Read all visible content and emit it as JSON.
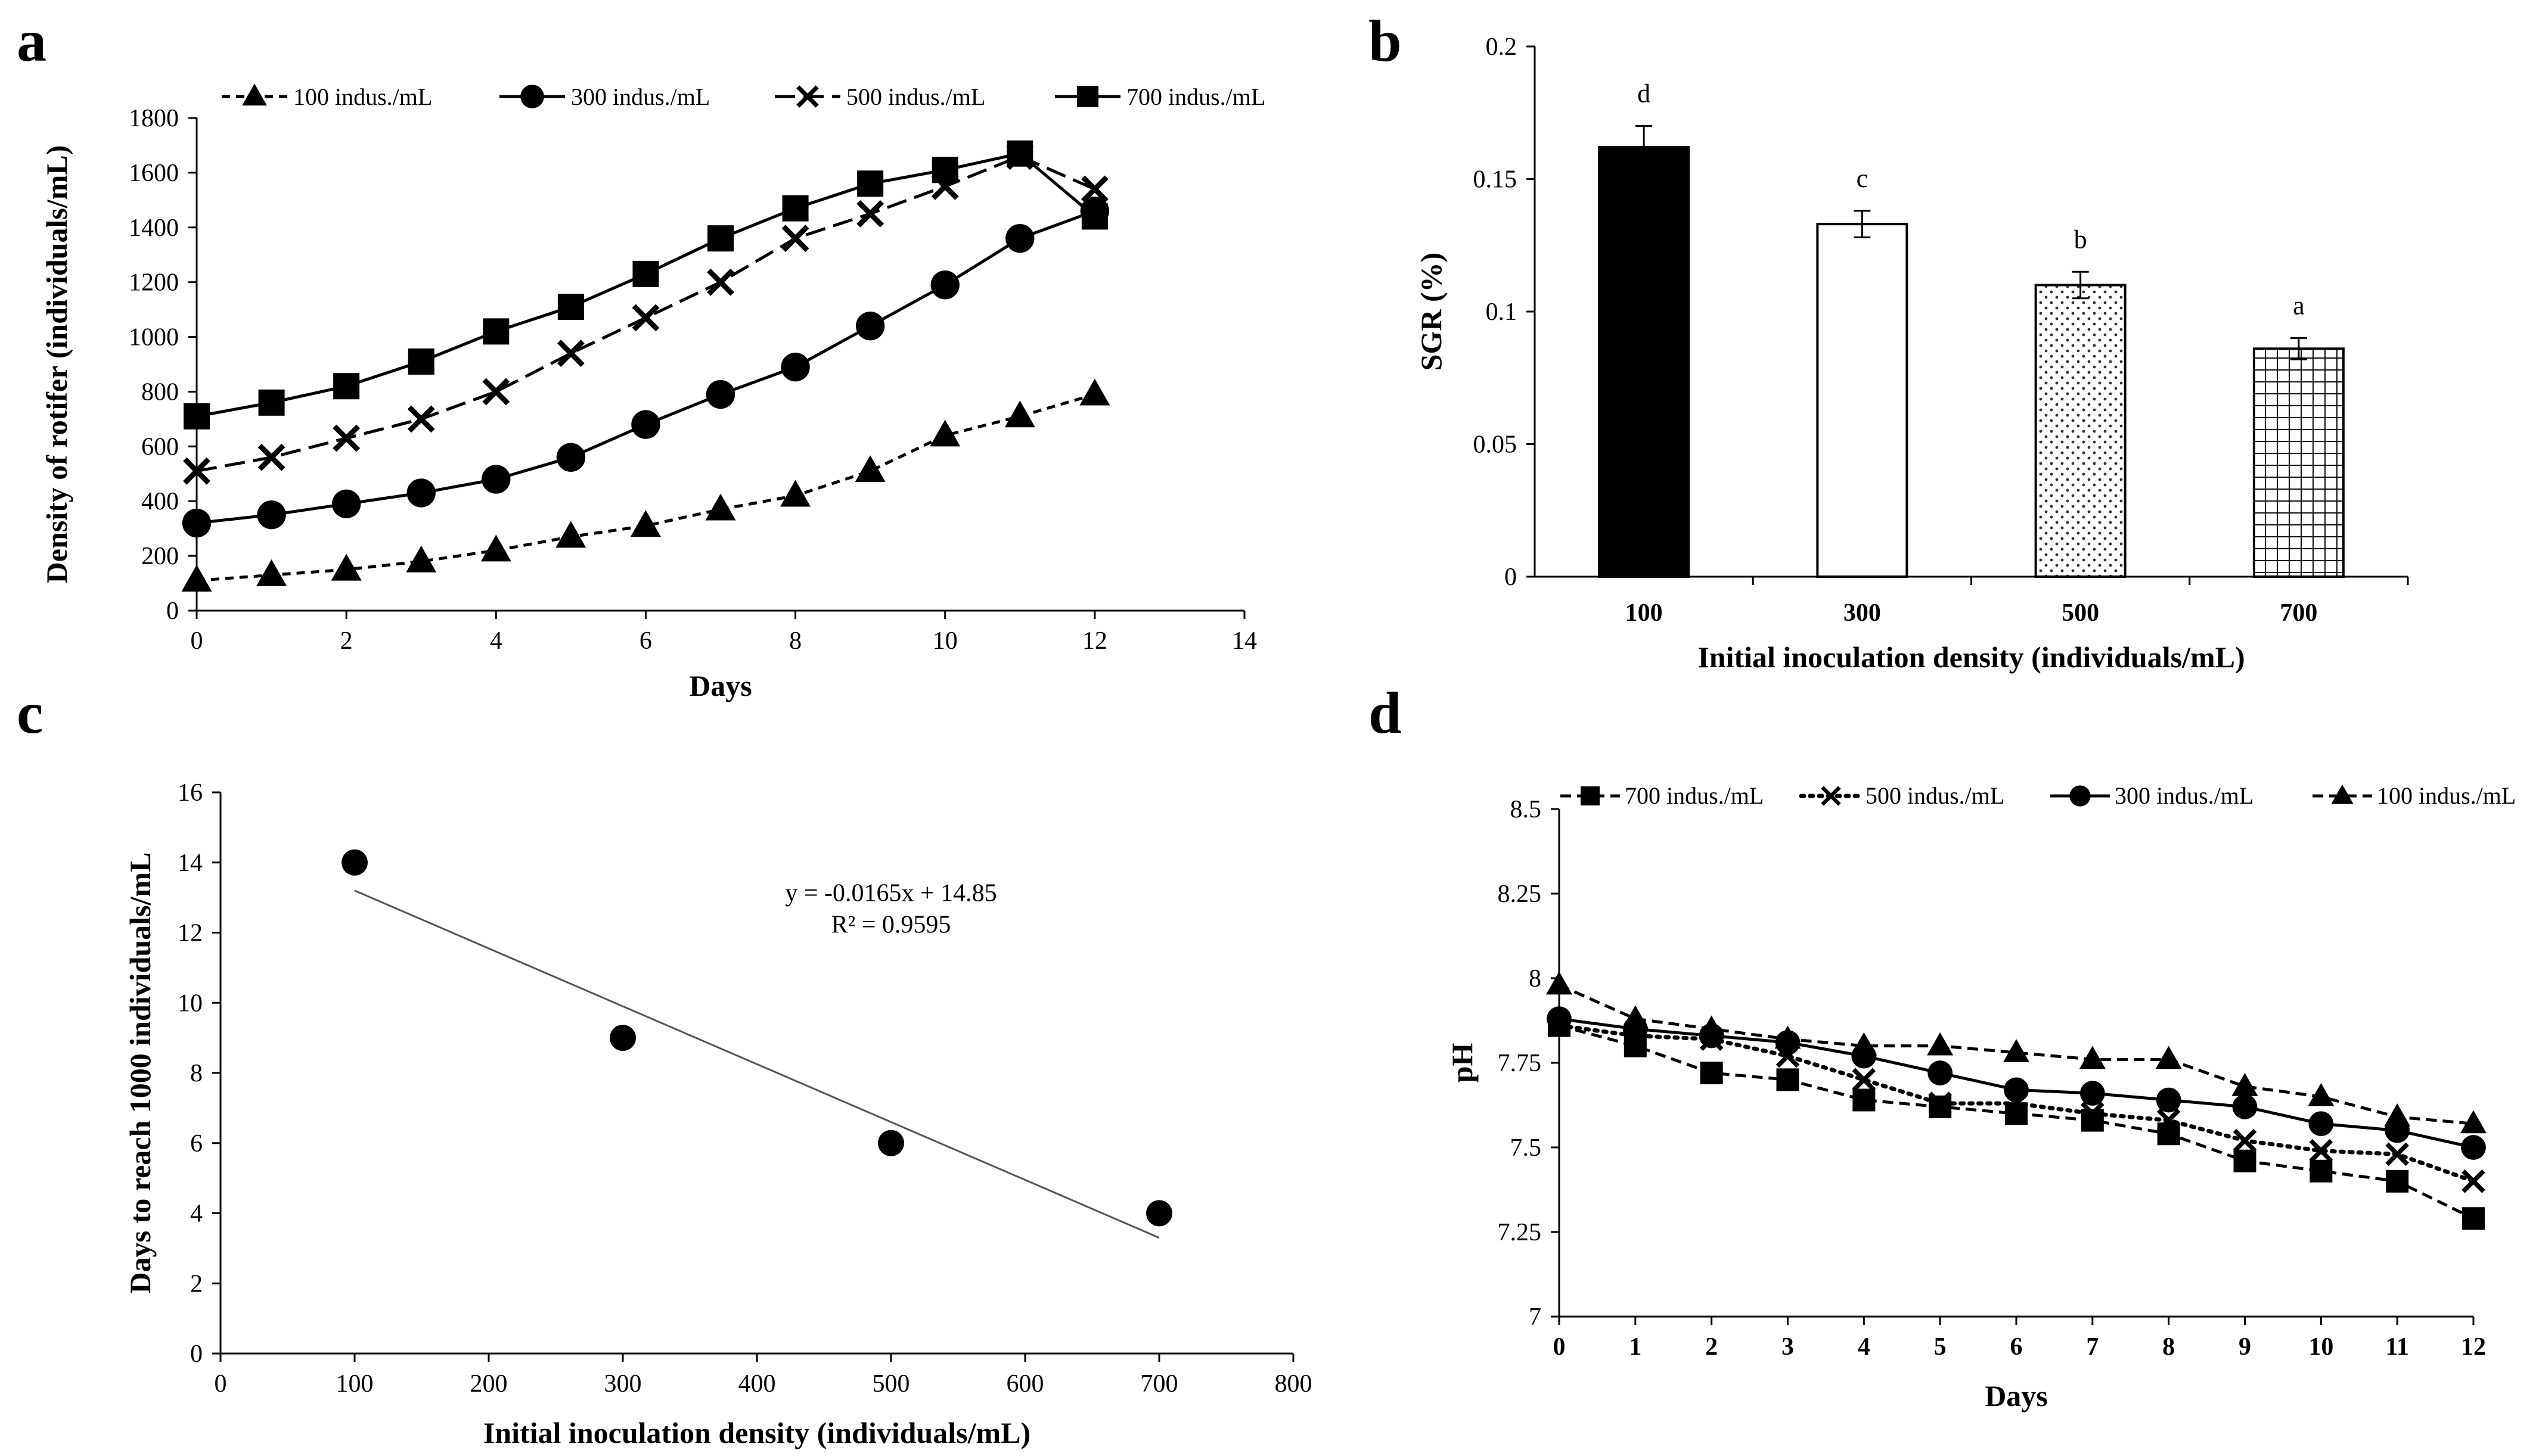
{
  "chart_data": [
    {
      "panel": "a",
      "type": "line",
      "xlabel": "Days",
      "ylabel": "Density of rotifer (individuals/mL)",
      "xlim": [
        0,
        14
      ],
      "ylim": [
        0,
        1800
      ],
      "xticks": [
        "0",
        "2",
        "4",
        "6",
        "8",
        "10",
        "12",
        "14"
      ],
      "yticks": [
        "0",
        "200",
        "400",
        "600",
        "800",
        "1000",
        "1200",
        "1400",
        "1600",
        "1800"
      ],
      "legend_position": "top",
      "x": [
        0,
        1,
        2,
        3,
        4,
        5,
        6,
        7,
        8,
        9,
        10,
        11,
        12
      ],
      "series": [
        {
          "name": "100 indus./mL",
          "marker": "triangle",
          "dash": "short",
          "values": [
            110,
            130,
            150,
            180,
            220,
            270,
            310,
            370,
            420,
            510,
            640,
            710,
            790
          ]
        },
        {
          "name": "300 indus./mL",
          "marker": "circle",
          "dash": "solid",
          "values": [
            320,
            350,
            390,
            430,
            480,
            560,
            680,
            790,
            890,
            1040,
            1190,
            1360,
            1460
          ]
        },
        {
          "name": "500 indus./mL",
          "marker": "x",
          "dash": "long",
          "values": [
            510,
            560,
            630,
            700,
            800,
            940,
            1070,
            1200,
            1360,
            1450,
            1550,
            1660,
            1540
          ]
        },
        {
          "name": "700 indus./mL",
          "marker": "square",
          "dash": "solid",
          "values": [
            710,
            760,
            820,
            910,
            1020,
            1110,
            1230,
            1360,
            1470,
            1560,
            1610,
            1670,
            1440
          ]
        }
      ]
    },
    {
      "panel": "b",
      "type": "bar",
      "xlabel": "Initial inoculation density (individuals/mL)",
      "ylabel": "SGR (%)",
      "ylim": [
        0,
        0.2
      ],
      "yticks": [
        "0",
        "0.05",
        "0.1",
        "0.15",
        "0.2"
      ],
      "categories": [
        "100",
        "300",
        "500",
        "700"
      ],
      "values": [
        0.162,
        0.133,
        0.11,
        0.086
      ],
      "errors": [
        0.008,
        0.005,
        0.005,
        0.004
      ],
      "letters": [
        "d",
        "c",
        "b",
        "a"
      ],
      "fills": [
        "solid-black",
        "white",
        "dots",
        "grid"
      ]
    },
    {
      "panel": "c",
      "type": "scatter",
      "xlabel": "Initial inoculation density (individuals/mL)",
      "ylabel": "Days to reach 1000 individuals/mL",
      "xlim": [
        0,
        800
      ],
      "ylim": [
        0,
        16
      ],
      "xticks": [
        "0",
        "100",
        "200",
        "300",
        "400",
        "500",
        "600",
        "700",
        "800"
      ],
      "yticks": [
        "0",
        "2",
        "4",
        "6",
        "8",
        "10",
        "12",
        "14",
        "16"
      ],
      "x": [
        100,
        300,
        500,
        700
      ],
      "y": [
        14,
        9,
        6,
        4
      ],
      "trendline": {
        "slope": -0.0165,
        "intercept": 14.85,
        "x_range": [
          100,
          700
        ]
      },
      "equation": "y = -0.0165x + 14.85",
      "r_squared": "R² = 0.9595"
    },
    {
      "panel": "d",
      "type": "line",
      "xlabel": "Days",
      "ylabel": "pH",
      "xlim": [
        0,
        12
      ],
      "ylim": [
        7,
        8.5
      ],
      "xticks": [
        "0",
        "1",
        "2",
        "3",
        "4",
        "5",
        "6",
        "7",
        "8",
        "9",
        "10",
        "11",
        "12"
      ],
      "yticks": [
        "7",
        "7.25",
        "7.5",
        "7.75",
        "8",
        "8.25",
        "8.5"
      ],
      "legend_position": "top",
      "x": [
        0,
        1,
        2,
        3,
        4,
        5,
        6,
        7,
        8,
        9,
        10,
        11,
        12
      ],
      "series": [
        {
          "name": "700 indus./mL",
          "marker": "square",
          "dash": "dashed",
          "values": [
            7.86,
            7.8,
            7.72,
            7.7,
            7.64,
            7.62,
            7.6,
            7.58,
            7.54,
            7.46,
            7.43,
            7.4,
            7.29
          ]
        },
        {
          "name": "500 indus./mL",
          "marker": "x",
          "dash": "dotted",
          "values": [
            7.86,
            7.83,
            7.82,
            7.77,
            7.7,
            7.63,
            7.63,
            7.6,
            7.58,
            7.52,
            7.49,
            7.48,
            7.4
          ]
        },
        {
          "name": "300 indus./mL",
          "marker": "circle",
          "dash": "solid",
          "values": [
            7.88,
            7.85,
            7.83,
            7.81,
            7.77,
            7.72,
            7.67,
            7.66,
            7.64,
            7.62,
            7.57,
            7.55,
            7.5
          ]
        },
        {
          "name": "100 indus./mL",
          "marker": "triangle",
          "dash": "dashed",
          "values": [
            7.98,
            7.88,
            7.85,
            7.82,
            7.8,
            7.8,
            7.78,
            7.76,
            7.76,
            7.68,
            7.65,
            7.59,
            7.57
          ]
        }
      ]
    }
  ],
  "panel_labels": [
    "a",
    "b",
    "c",
    "d"
  ]
}
